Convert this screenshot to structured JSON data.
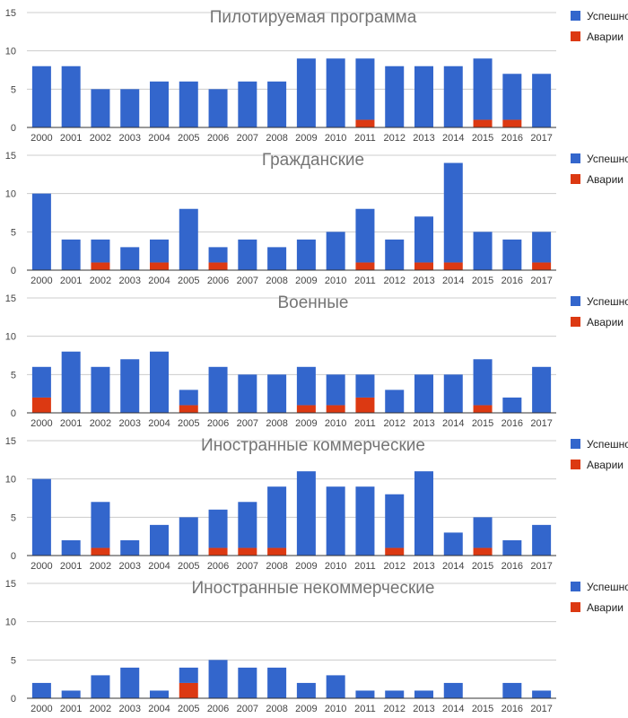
{
  "colors": {
    "success": "#3366cc",
    "failure": "#dc3912"
  },
  "chart_data": [
    {
      "type": "bar",
      "title": "Пилотируемая программа",
      "categories": [
        "2000",
        "2001",
        "2002",
        "2003",
        "2004",
        "2005",
        "2006",
        "2007",
        "2008",
        "2009",
        "2010",
        "2011",
        "2012",
        "2013",
        "2014",
        "2015",
        "2016",
        "2017"
      ],
      "ylim": [
        0,
        15
      ],
      "yticks": [
        "0",
        "5",
        "10",
        "15"
      ],
      "series": [
        {
          "name": "Успешно",
          "values": [
            8,
            8,
            5,
            5,
            6,
            6,
            5,
            6,
            6,
            9,
            9,
            8,
            8,
            8,
            8,
            8,
            6,
            7
          ]
        },
        {
          "name": "Аварии",
          "values": [
            0,
            0,
            0,
            0,
            0,
            0,
            0,
            0,
            0,
            0,
            0,
            1,
            0,
            0,
            0,
            1,
            1,
            0
          ]
        }
      ]
    },
    {
      "type": "bar",
      "title": "Гражданские",
      "categories": [
        "2000",
        "2001",
        "2002",
        "2003",
        "2004",
        "2005",
        "2006",
        "2007",
        "2008",
        "2009",
        "2010",
        "2011",
        "2012",
        "2013",
        "2014",
        "2015",
        "2016",
        "2017"
      ],
      "ylim": [
        0,
        15
      ],
      "yticks": [
        "0",
        "5",
        "10",
        "15"
      ],
      "series": [
        {
          "name": "Успешно",
          "values": [
            10,
            4,
            3,
            3,
            3,
            8,
            2,
            4,
            3,
            4,
            5,
            7,
            4,
            6,
            13,
            5,
            4,
            4
          ]
        },
        {
          "name": "Аварии",
          "values": [
            0,
            0,
            1,
            0,
            1,
            0,
            1,
            0,
            0,
            0,
            0,
            1,
            0,
            1,
            1,
            0,
            0,
            1
          ]
        }
      ]
    },
    {
      "type": "bar",
      "title": "Военные",
      "categories": [
        "2000",
        "2001",
        "2002",
        "2003",
        "2004",
        "2005",
        "2006",
        "2007",
        "2008",
        "2009",
        "2010",
        "2011",
        "2012",
        "2013",
        "2014",
        "2015",
        "2016",
        "2017"
      ],
      "ylim": [
        0,
        15
      ],
      "yticks": [
        "0",
        "5",
        "10",
        "15"
      ],
      "series": [
        {
          "name": "Успешно",
          "values": [
            4,
            8,
            6,
            7,
            8,
            2,
            6,
            5,
            5,
            5,
            4,
            3,
            3,
            5,
            5,
            6,
            2,
            6
          ]
        },
        {
          "name": "Аварии",
          "values": [
            2,
            0,
            0,
            0,
            0,
            1,
            0,
            0,
            0,
            1,
            1,
            2,
            0,
            0,
            0,
            1,
            0,
            0
          ]
        }
      ]
    },
    {
      "type": "bar",
      "title": "Иностранные коммерческие",
      "categories": [
        "2000",
        "2001",
        "2002",
        "2003",
        "2004",
        "2005",
        "2006",
        "2007",
        "2008",
        "2009",
        "2010",
        "2011",
        "2012",
        "2013",
        "2014",
        "2015",
        "2016",
        "2017"
      ],
      "ylim": [
        0,
        15
      ],
      "yticks": [
        "0",
        "5",
        "10",
        "15"
      ],
      "series": [
        {
          "name": "Успешно",
          "values": [
            10,
            2,
            6,
            2,
            4,
            5,
            5,
            6,
            8,
            11,
            9,
            9,
            7,
            11,
            3,
            4,
            2,
            4
          ]
        },
        {
          "name": "Аварии",
          "values": [
            0,
            0,
            1,
            0,
            0,
            0,
            1,
            1,
            1,
            0,
            0,
            0,
            1,
            0,
            0,
            1,
            0,
            0
          ]
        }
      ]
    },
    {
      "type": "bar",
      "title": "Иностранные некоммерческие",
      "categories": [
        "2000",
        "2001",
        "2002",
        "2003",
        "2004",
        "2005",
        "2006",
        "2007",
        "2008",
        "2009",
        "2010",
        "2011",
        "2012",
        "2013",
        "2014",
        "2015",
        "2016",
        "2017"
      ],
      "ylim": [
        0,
        15
      ],
      "yticks": [
        "0",
        "5",
        "10",
        "15"
      ],
      "series": [
        {
          "name": "Успешно",
          "values": [
            2,
            1,
            3,
            4,
            1,
            2,
            5,
            4,
            4,
            2,
            3,
            1,
            1,
            1,
            2,
            0,
            2,
            1
          ]
        },
        {
          "name": "Аварии",
          "values": [
            0,
            0,
            0,
            0,
            0,
            2,
            0,
            0,
            0,
            0,
            0,
            0,
            0,
            0,
            0,
            0,
            0,
            0
          ]
        }
      ]
    }
  ]
}
